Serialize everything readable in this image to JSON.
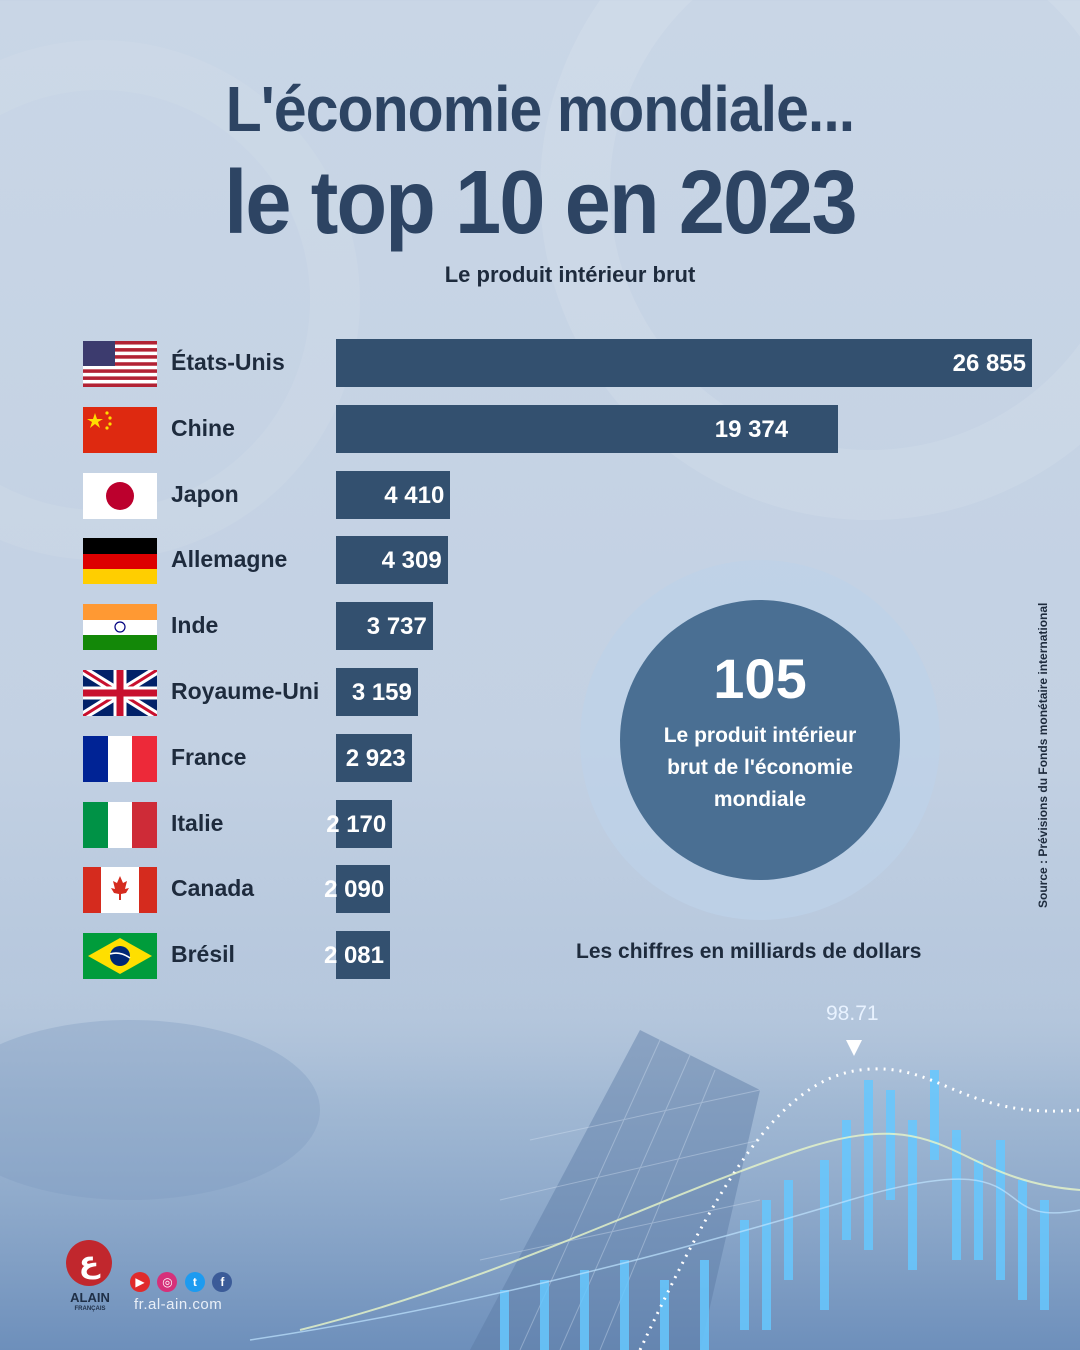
{
  "title_line1": "L'économie mondiale...",
  "title_line2": "le top 10 en 2023",
  "subtitle": "Le produit intérieur brut",
  "chart_data": {
    "type": "bar",
    "orientation": "horizontal",
    "title": "L'économie mondiale... le top 10 en 2023",
    "subtitle": "Le produit intérieur brut",
    "unit_note": "Les chiffres en milliards de dollars",
    "categories": [
      "États-Unis",
      "Chine",
      "Japon",
      "Allemagne",
      "Inde",
      "Royaume-Uni",
      "France",
      "Italie",
      "Canada",
      "Brésil"
    ],
    "values": [
      26855,
      19374,
      4410,
      4309,
      3737,
      3159,
      2923,
      2170,
      2090,
      2081
    ],
    "value_labels": [
      "26 855",
      "19 374",
      "4 410",
      "4 309",
      "3 737",
      "3 159",
      "2 923",
      "2 170",
      "2 090",
      "2 081"
    ],
    "xlim": [
      0,
      26855
    ],
    "grid": false,
    "bar_color": "#33506f"
  },
  "callout": {
    "value": "105",
    "text": "Le produit intérieur brut de l'économie mondiale"
  },
  "note": "Les chiffres en milliards de dollars",
  "source": "Source : Prévisions du Fonds monétaire international",
  "decor_number": "98.71",
  "brand": {
    "logo_text": "ALAIN",
    "logo_sub": "FRANÇAIS",
    "website": "fr.al-ain.com",
    "social_icons": [
      "youtube-icon",
      "instagram-icon",
      "twitter-icon",
      "facebook-icon"
    ]
  }
}
